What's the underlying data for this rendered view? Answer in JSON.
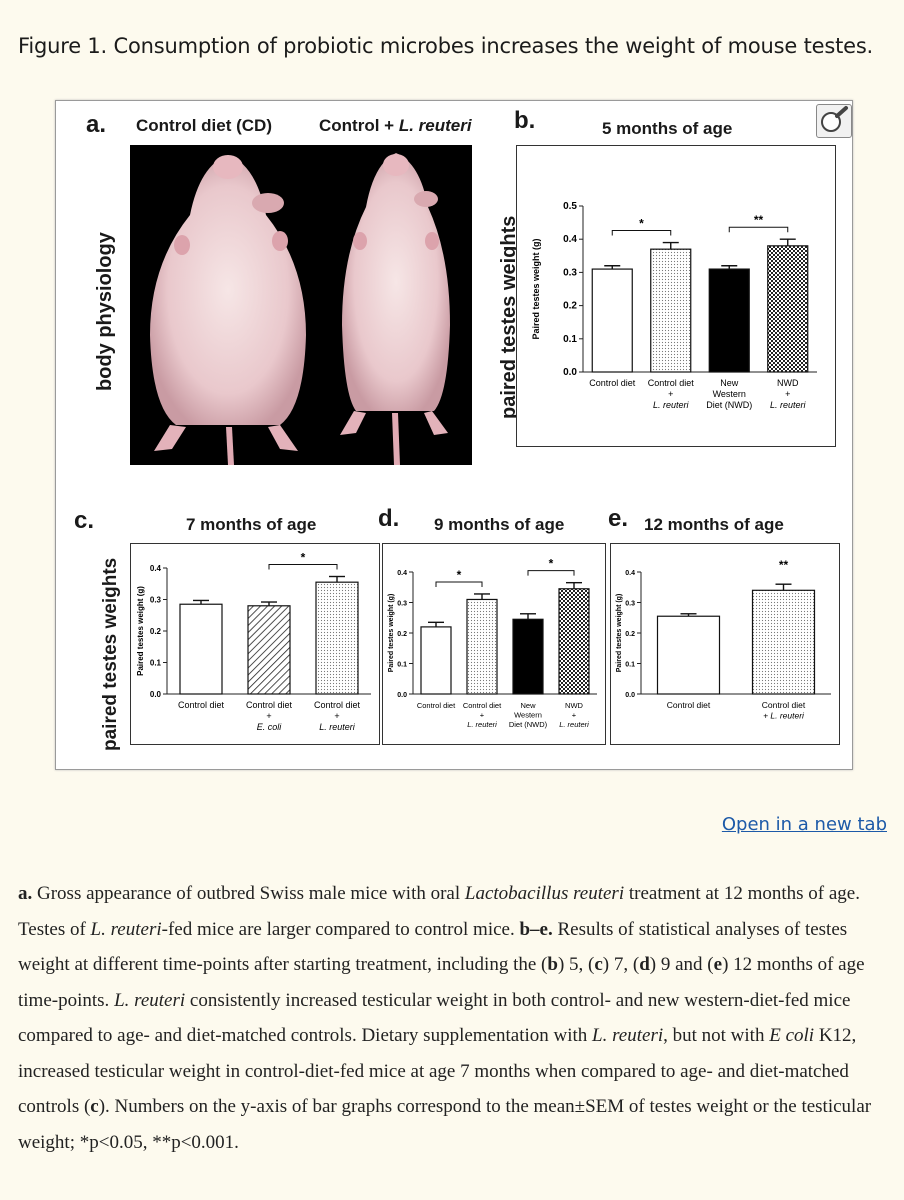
{
  "figure": {
    "title": "Figure 1. Consumption of probiotic microbes increases the weight of mouse testes.",
    "open_link": "Open in a new tab",
    "panel_a": {
      "letter": "a.",
      "left_label": "Control diet (CD)",
      "right_label_prefix": "Control + ",
      "right_label_species": "L. reuteri",
      "side_label": "body physiology"
    },
    "panel_b_letter": "b.",
    "panel_c_letter": "c.",
    "panel_d_letter": "d.",
    "panel_e_letter": "e.",
    "side_label_b": "paired testes weights",
    "side_label_cde": "paired testes weights"
  },
  "chart_data": [
    {
      "id": "b",
      "type": "bar",
      "title": "5 months of age",
      "ylabel": "Paired testes weight (g)",
      "ylim": [
        0,
        0.5
      ],
      "yticks": [
        "0.0",
        "0.1",
        "0.2",
        "0.3",
        "0.4",
        "0.5"
      ],
      "categories": [
        [
          "Control diet"
        ],
        [
          "Control diet",
          "+",
          "L. reuteri"
        ],
        [
          "New",
          "Western",
          "Diet (NWD)"
        ],
        [
          "NWD",
          "+",
          "L. reuteri"
        ]
      ],
      "values": [
        0.31,
        0.37,
        0.31,
        0.38
      ],
      "errors": [
        0.01,
        0.02,
        0.01,
        0.02
      ],
      "fills": [
        "white",
        "dots",
        "black",
        "checker"
      ],
      "significance": [
        {
          "from": 0,
          "to": 1,
          "label": "*"
        },
        {
          "from": 2,
          "to": 3,
          "label": "**"
        }
      ]
    },
    {
      "id": "c",
      "type": "bar",
      "title": "7 months of age",
      "ylabel": "Paired testes weight (g)",
      "ylim": [
        0,
        0.4
      ],
      "yticks": [
        "0.0",
        "0.1",
        "0.2",
        "0.3",
        "0.4"
      ],
      "categories": [
        [
          "Control diet"
        ],
        [
          "Control diet",
          "+",
          "E. coli"
        ],
        [
          "Control diet",
          "+",
          "L. reuteri"
        ]
      ],
      "values": [
        0.285,
        0.28,
        0.355
      ],
      "errors": [
        0.012,
        0.012,
        0.018
      ],
      "fills": [
        "white",
        "hatch",
        "dots"
      ],
      "significance": [
        {
          "from": 1,
          "to": 2,
          "label": "*"
        }
      ]
    },
    {
      "id": "d",
      "type": "bar",
      "title": "9 months of age",
      "ylabel": "Paired testes weight (g)",
      "ylim": [
        0,
        0.4
      ],
      "yticks": [
        "0.0",
        "0.1",
        "0.2",
        "0.3",
        "0.4"
      ],
      "categories": [
        [
          "Control diet"
        ],
        [
          "Control diet",
          "+",
          "L. reuteri"
        ],
        [
          "New",
          "Western",
          "Diet (NWD)"
        ],
        [
          "NWD",
          "+",
          "L. reuteri"
        ]
      ],
      "values": [
        0.22,
        0.31,
        0.245,
        0.345
      ],
      "errors": [
        0.015,
        0.018,
        0.018,
        0.02
      ],
      "fills": [
        "white",
        "dots",
        "black",
        "checker"
      ],
      "significance": [
        {
          "from": 0,
          "to": 1,
          "label": "*"
        },
        {
          "from": 2,
          "to": 3,
          "label": "*"
        }
      ]
    },
    {
      "id": "e",
      "type": "bar",
      "title": "12 months of age",
      "ylabel": "Paired testes weight (g)",
      "ylim": [
        0,
        0.4
      ],
      "yticks": [
        "0.0",
        "0.1",
        "0.2",
        "0.3",
        "0.4"
      ],
      "categories": [
        [
          "Control diet"
        ],
        [
          "Control diet",
          "+ L. reuteri"
        ]
      ],
      "values": [
        0.255,
        0.34
      ],
      "errors": [
        0.008,
        0.02
      ],
      "fills": [
        "white",
        "dots"
      ],
      "significance": [
        {
          "from": 1,
          "to": 1,
          "label": "**"
        }
      ]
    }
  ],
  "caption": {
    "s1_bold": "a.",
    "s2": " Gross appearance of outbred Swiss male mice with oral ",
    "s3_it": "Lactobacillus reuteri",
    "s4": " treatment at 12 months of age. Testes of ",
    "s5_it": "L. reuteri",
    "s6": "-fed mice are larger compared to control mice. ",
    "s7_bold": "b–e.",
    "s8": " Results of statistical analyses of testes weight at different time-points after starting treatment, including the (",
    "s9_bold": "b",
    "s10": ") 5, (",
    "s11_bold": "c",
    "s12": ") 7, (",
    "s13_bold": "d",
    "s14": ") 9 and (",
    "s15_bold": "e",
    "s16": ") 12 months of age time-points. ",
    "s17_it": "L. reuteri",
    "s18": " consistently increased testicular weight in both control- and new western-diet-fed mice compared to age- and diet-matched controls. Dietary supplementation with ",
    "s19_it": "L. reuteri",
    "s20": ", but not with ",
    "s21_it": "E coli",
    "s22": " K12, increased testicular weight in control-diet-fed mice at age 7 months when compared to age- and diet-matched controls (",
    "s23_bold": "c",
    "s24": "). Numbers on the y-axis of bar graphs correspond to the mean±SEM of testes weight or the testicular weight; *p<0.05, **p<0.001."
  }
}
